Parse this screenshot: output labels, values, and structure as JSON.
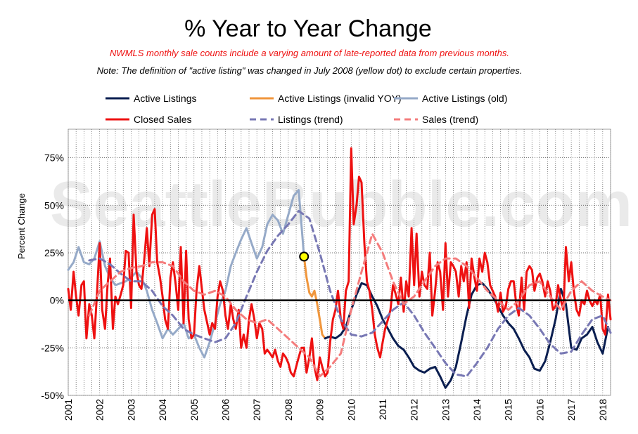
{
  "watermark": "SeattleBubble.com",
  "chart_data": {
    "type": "line",
    "title": "% Year to Year Change",
    "subtitle_red": "NWMLS monthly sale counts include a varying amount of late-reported data from previous months.",
    "subtitle_note": "Note: The definition of \"active listing\" was changed in July 2008 (yellow dot) to exclude certain properties.",
    "ylabel": "Percent Change",
    "xlabel": "",
    "ylim": [
      -50,
      90
    ],
    "yticks": [
      75,
      50,
      25,
      0,
      -25,
      -50
    ],
    "ytick_labels": [
      "75%",
      "50%",
      "25%",
      "0%",
      "-25%",
      "-50%"
    ],
    "xlim": [
      2001,
      2018.25
    ],
    "xticks": [
      2001,
      2002,
      2003,
      2004,
      2005,
      2006,
      2007,
      2008,
      2009,
      2010,
      2011,
      2012,
      2013,
      2014,
      2015,
      2016,
      2017,
      2018
    ],
    "xtick_labels": [
      "2001",
      "2002",
      "2003",
      "2004",
      "2005",
      "2006",
      "2007",
      "2008",
      "2009",
      "2010",
      "2011",
      "2012",
      "2013",
      "2014",
      "2015",
      "2016",
      "2017",
      "2018"
    ],
    "grid": true,
    "legend_position": "top",
    "marker": {
      "label": "July 2008",
      "x": 2008.5,
      "y": 23,
      "color": "#ffff00"
    },
    "series": [
      {
        "name": "Active Listings (old)",
        "color": "#96aac8",
        "dash": "",
        "x": [
          2001.0,
          2001.17,
          2001.33,
          2001.5,
          2001.67,
          2001.83,
          2002.0,
          2002.17,
          2002.33,
          2002.5,
          2002.67,
          2002.83,
          2003.0,
          2003.17,
          2003.33,
          2003.5,
          2003.67,
          2003.83,
          2004.0,
          2004.17,
          2004.33,
          2004.5,
          2004.67,
          2004.83,
          2005.0,
          2005.17,
          2005.33,
          2005.5,
          2005.67,
          2005.83,
          2006.0,
          2006.17,
          2006.33,
          2006.5,
          2006.67,
          2006.83,
          2007.0,
          2007.17,
          2007.33,
          2007.5,
          2007.67,
          2007.83,
          2008.0,
          2008.17,
          2008.33,
          2008.5
        ],
        "values": [
          16,
          20,
          28,
          20,
          19,
          22,
          31,
          18,
          12,
          8,
          9,
          10,
          12,
          15,
          12,
          5,
          -5,
          -12,
          -20,
          -15,
          -18,
          -15,
          -12,
          -20,
          -18,
          -25,
          -30,
          -22,
          -12,
          -2,
          5,
          18,
          25,
          32,
          38,
          30,
          22,
          28,
          40,
          45,
          42,
          35,
          45,
          55,
          58,
          23
        ]
      },
      {
        "name": "Active Listings (invalid YOY)",
        "color": "#f0963c",
        "dash": "",
        "x": [
          2008.5,
          2008.58,
          2008.67,
          2008.75,
          2008.83,
          2008.92,
          2009.0,
          2009.08,
          2009.17
        ],
        "values": [
          23,
          12,
          4,
          2,
          5,
          -2,
          -10,
          -18,
          -20
        ]
      },
      {
        "name": "Active Listings",
        "color": "#0a1e50",
        "dash": "",
        "x": [
          2009.17,
          2009.33,
          2009.5,
          2009.67,
          2009.83,
          2010.0,
          2010.17,
          2010.33,
          2010.5,
          2010.67,
          2010.83,
          2011.0,
          2011.17,
          2011.33,
          2011.5,
          2011.67,
          2011.83,
          2012.0,
          2012.17,
          2012.33,
          2012.5,
          2012.67,
          2012.83,
          2013.0,
          2013.17,
          2013.33,
          2013.5,
          2013.67,
          2013.83,
          2014.0,
          2014.17,
          2014.33,
          2014.5,
          2014.67,
          2014.83,
          2015.0,
          2015.17,
          2015.33,
          2015.5,
          2015.67,
          2015.83,
          2016.0,
          2016.17,
          2016.33,
          2016.5,
          2016.67,
          2016.83,
          2017.0,
          2017.17,
          2017.33,
          2017.5,
          2017.67,
          2017.83,
          2018.0,
          2018.17
        ],
        "values": [
          -20,
          -19,
          -20,
          -18,
          -14,
          -5,
          3,
          9,
          8,
          2,
          -3,
          -10,
          -15,
          -20,
          -24,
          -26,
          -30,
          -35,
          -37,
          -38,
          -36,
          -35,
          -40,
          -46,
          -42,
          -35,
          -22,
          -8,
          3,
          8,
          9,
          6,
          2,
          -3,
          -8,
          -12,
          -15,
          -20,
          -26,
          -30,
          -36,
          -37,
          -32,
          -22,
          -10,
          6,
          -2,
          -25,
          -26,
          -20,
          -18,
          -14,
          -22,
          -28,
          -14
        ]
      },
      {
        "name": "Closed Sales",
        "color": "#ee1111",
        "dash": "",
        "x": [
          2001.0,
          2001.08,
          2001.17,
          2001.25,
          2001.33,
          2001.42,
          2001.5,
          2001.58,
          2001.67,
          2001.75,
          2001.83,
          2001.92,
          2002.0,
          2002.08,
          2002.17,
          2002.25,
          2002.33,
          2002.42,
          2002.5,
          2002.58,
          2002.67,
          2002.75,
          2002.83,
          2002.92,
          2003.0,
          2003.08,
          2003.17,
          2003.25,
          2003.33,
          2003.42,
          2003.5,
          2003.58,
          2003.67,
          2003.75,
          2003.83,
          2003.92,
          2004.0,
          2004.08,
          2004.17,
          2004.25,
          2004.33,
          2004.42,
          2004.5,
          2004.58,
          2004.67,
          2004.75,
          2004.83,
          2004.92,
          2005.0,
          2005.08,
          2005.17,
          2005.25,
          2005.33,
          2005.42,
          2005.5,
          2005.58,
          2005.67,
          2005.75,
          2005.83,
          2005.92,
          2006.0,
          2006.08,
          2006.17,
          2006.25,
          2006.33,
          2006.42,
          2006.5,
          2006.58,
          2006.67,
          2006.75,
          2006.83,
          2006.92,
          2007.0,
          2007.08,
          2007.17,
          2007.25,
          2007.33,
          2007.42,
          2007.5,
          2007.58,
          2007.67,
          2007.75,
          2007.83,
          2007.92,
          2008.0,
          2008.08,
          2008.17,
          2008.25,
          2008.33,
          2008.42,
          2008.5,
          2008.58,
          2008.67,
          2008.75,
          2008.83,
          2008.92,
          2009.0,
          2009.08,
          2009.17,
          2009.25,
          2009.33,
          2009.42,
          2009.5,
          2009.58,
          2009.67,
          2009.75,
          2009.83,
          2009.92,
          2010.0,
          2010.08,
          2010.17,
          2010.25,
          2010.33,
          2010.42,
          2010.5,
          2010.58,
          2010.67,
          2010.75,
          2010.83,
          2010.92,
          2011.0,
          2011.08,
          2011.17,
          2011.25,
          2011.33,
          2011.42,
          2011.5,
          2011.58,
          2011.67,
          2011.75,
          2011.83,
          2011.92,
          2012.0,
          2012.08,
          2012.17,
          2012.25,
          2012.33,
          2012.42,
          2012.5,
          2012.58,
          2012.67,
          2012.75,
          2012.83,
          2012.92,
          2013.0,
          2013.08,
          2013.17,
          2013.25,
          2013.33,
          2013.42,
          2013.5,
          2013.58,
          2013.67,
          2013.75,
          2013.83,
          2013.92,
          2014.0,
          2014.08,
          2014.17,
          2014.25,
          2014.33,
          2014.42,
          2014.5,
          2014.58,
          2014.67,
          2014.75,
          2014.83,
          2014.92,
          2015.0,
          2015.08,
          2015.17,
          2015.25,
          2015.33,
          2015.42,
          2015.5,
          2015.58,
          2015.67,
          2015.75,
          2015.83,
          2015.92,
          2016.0,
          2016.08,
          2016.17,
          2016.25,
          2016.33,
          2016.42,
          2016.5,
          2016.58,
          2016.67,
          2016.75,
          2016.83,
          2016.92,
          2017.0,
          2017.08,
          2017.17,
          2017.25,
          2017.33,
          2017.42,
          2017.5,
          2017.58,
          2017.67,
          2017.75,
          2017.83,
          2017.92,
          2018.0,
          2018.08,
          2018.17,
          2018.25
        ],
        "values": [
          6,
          -5,
          15,
          2,
          -8,
          8,
          10,
          -20,
          -2,
          -8,
          -20,
          5,
          30,
          -5,
          -15,
          8,
          22,
          -15,
          2,
          -2,
          3,
          8,
          26,
          25,
          -4,
          45,
          15,
          8,
          6,
          22,
          38,
          18,
          45,
          48,
          20,
          12,
          2,
          -10,
          -15,
          12,
          20,
          8,
          -5,
          28,
          -12,
          26,
          -10,
          -20,
          -18,
          5,
          18,
          6,
          -5,
          -12,
          -18,
          -12,
          -15,
          2,
          10,
          5,
          -8,
          -15,
          -2,
          -10,
          -15,
          -5,
          -25,
          -18,
          -25,
          -10,
          -2,
          -10,
          -20,
          -12,
          -15,
          -28,
          -26,
          -28,
          -30,
          -26,
          -32,
          -35,
          -28,
          -30,
          -33,
          -38,
          -40,
          -35,
          -30,
          -25,
          -25,
          -38,
          -30,
          -20,
          -35,
          -42,
          -30,
          -35,
          -40,
          -38,
          -22,
          -10,
          -5,
          5,
          -10,
          -15,
          5,
          10,
          80,
          40,
          50,
          65,
          62,
          30,
          10,
          5,
          -5,
          -18,
          -25,
          -30,
          -22,
          -15,
          -10,
          -5,
          8,
          3,
          -2,
          12,
          -6,
          10,
          2,
          38,
          8,
          35,
          2,
          15,
          8,
          6,
          25,
          -8,
          5,
          20,
          15,
          -5,
          30,
          2,
          20,
          18,
          15,
          2,
          18,
          10,
          20,
          -4,
          22,
          12,
          5,
          22,
          15,
          25,
          20,
          8,
          5,
          2,
          -6,
          4,
          -6,
          -3,
          6,
          10,
          10,
          -2,
          -8,
          12,
          -5,
          15,
          18,
          16,
          5,
          12,
          14,
          10,
          2,
          10,
          5,
          -5,
          -3,
          8,
          0,
          -5,
          28,
          10,
          20,
          5,
          -5,
          -8,
          0,
          -2,
          5,
          0,
          -3,
          0,
          -2,
          3,
          -15,
          -18,
          3,
          -10
        ]
      },
      {
        "name": "Listings (trend)",
        "color": "#7878b4",
        "dash": "9,6",
        "x": [
          2001.67,
          2002.0,
          2002.33,
          2002.67,
          2003.0,
          2003.33,
          2003.67,
          2004.0,
          2004.33,
          2004.67,
          2005.0,
          2005.33,
          2005.67,
          2006.0,
          2006.33,
          2006.67,
          2007.0,
          2007.33,
          2007.67,
          2008.0,
          2008.33,
          2008.67,
          2009.0,
          2009.33,
          2009.67,
          2010.0,
          2010.33,
          2010.67,
          2011.0,
          2011.33,
          2011.67,
          2012.0,
          2012.33,
          2012.67,
          2013.0,
          2013.33,
          2013.67,
          2014.0,
          2014.33,
          2014.67,
          2015.0,
          2015.33,
          2015.67,
          2016.0,
          2016.33,
          2016.67,
          2017.0,
          2017.33,
          2017.67,
          2018.0,
          2018.25
        ],
        "values": [
          21,
          22,
          19,
          14,
          10,
          10,
          5,
          -3,
          -8,
          -15,
          -18,
          -20,
          -22,
          -20,
          -12,
          2,
          15,
          26,
          34,
          40,
          47,
          43,
          25,
          5,
          -10,
          -18,
          -19,
          -17,
          -11,
          -5,
          -1,
          -8,
          -17,
          -25,
          -33,
          -39,
          -40,
          -33,
          -25,
          -15,
          -8,
          -4,
          -8,
          -15,
          -23,
          -28,
          -27,
          -18,
          -10,
          -8,
          -17
        ]
      },
      {
        "name": "Sales (trend)",
        "color": "#f47c7c",
        "dash": "9,6",
        "x": [
          2001.67,
          2002.0,
          2002.33,
          2002.67,
          2003.0,
          2003.33,
          2003.67,
          2004.0,
          2004.33,
          2004.67,
          2005.0,
          2005.33,
          2005.67,
          2006.0,
          2006.33,
          2006.67,
          2007.0,
          2007.33,
          2007.67,
          2008.0,
          2008.33,
          2008.67,
          2009.0,
          2009.33,
          2009.67,
          2010.0,
          2010.33,
          2010.67,
          2011.0,
          2011.33,
          2011.67,
          2012.0,
          2012.33,
          2012.67,
          2013.0,
          2013.33,
          2013.67,
          2014.0,
          2014.33,
          2014.67,
          2015.0,
          2015.33,
          2015.67,
          2016.0,
          2016.33,
          2016.67,
          2017.0,
          2017.33,
          2017.67,
          2018.0,
          2018.25
        ],
        "values": [
          -8,
          5,
          10,
          15,
          17,
          18,
          20,
          20,
          18,
          10,
          5,
          3,
          5,
          2,
          -5,
          -10,
          -12,
          -10,
          -15,
          -20,
          -25,
          -30,
          -40,
          -35,
          -28,
          -5,
          15,
          35,
          25,
          10,
          -2,
          2,
          10,
          18,
          22,
          22,
          18,
          12,
          5,
          0,
          -5,
          0,
          8,
          10,
          2,
          -5,
          5,
          10,
          5,
          2,
          0
        ]
      }
    ],
    "legend": [
      {
        "label": "Active Listings",
        "color": "#0a1e50",
        "dash": ""
      },
      {
        "label": "Active Listings (invalid YOY)",
        "color": "#f0963c",
        "dash": ""
      },
      {
        "label": "Active Listings (old)",
        "color": "#96aac8",
        "dash": ""
      },
      {
        "label": "Closed Sales",
        "color": "#ee1111",
        "dash": ""
      },
      {
        "label": "Listings (trend)",
        "color": "#7878b4",
        "dash": "9,6"
      },
      {
        "label": "Sales (trend)",
        "color": "#f47c7c",
        "dash": "9,6"
      }
    ]
  }
}
